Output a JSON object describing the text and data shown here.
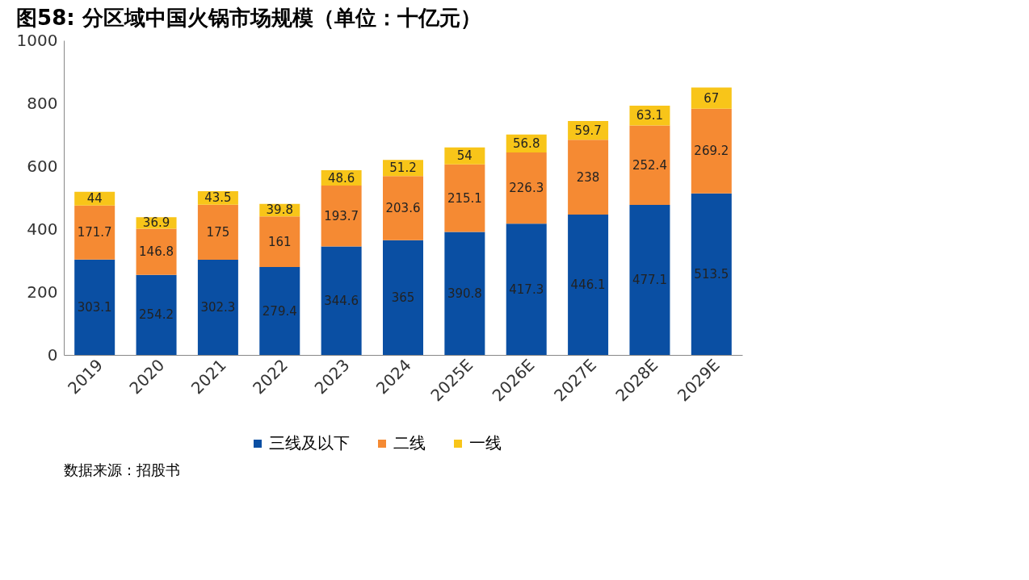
{
  "chart_data": {
    "type": "bar",
    "title": "图58: 分区域中国火锅市场规模（单位：十亿元）",
    "categories": [
      "2019",
      "2020",
      "2021",
      "2022",
      "2023",
      "2024",
      "2025E",
      "2026E",
      "2027E",
      "2028E",
      "2029E"
    ],
    "series": [
      {
        "name": "三线及以下",
        "color": "#0a4fa3",
        "values": [
          303.1,
          254.2,
          302.3,
          279.4,
          344.6,
          365,
          390.8,
          417.3,
          446.1,
          477.1,
          513.5
        ]
      },
      {
        "name": "二线",
        "color": "#f58a33",
        "values": [
          171.7,
          146.8,
          175,
          161,
          193.7,
          203.6,
          215.1,
          226.3,
          238,
          252.4,
          269.2
        ]
      },
      {
        "name": "一线",
        "color": "#f8c519",
        "values": [
          44,
          36.9,
          43.5,
          39.8,
          48.6,
          51.2,
          54,
          56.8,
          59.7,
          63.1,
          67
        ]
      }
    ],
    "stacked": true,
    "data_labels": true,
    "ylim": [
      0,
      1000
    ],
    "yticks": [
      0,
      200,
      400,
      600,
      800,
      1000
    ],
    "grid": false,
    "legend": "bottom",
    "annotations": [
      "数据来源：招股书"
    ]
  }
}
